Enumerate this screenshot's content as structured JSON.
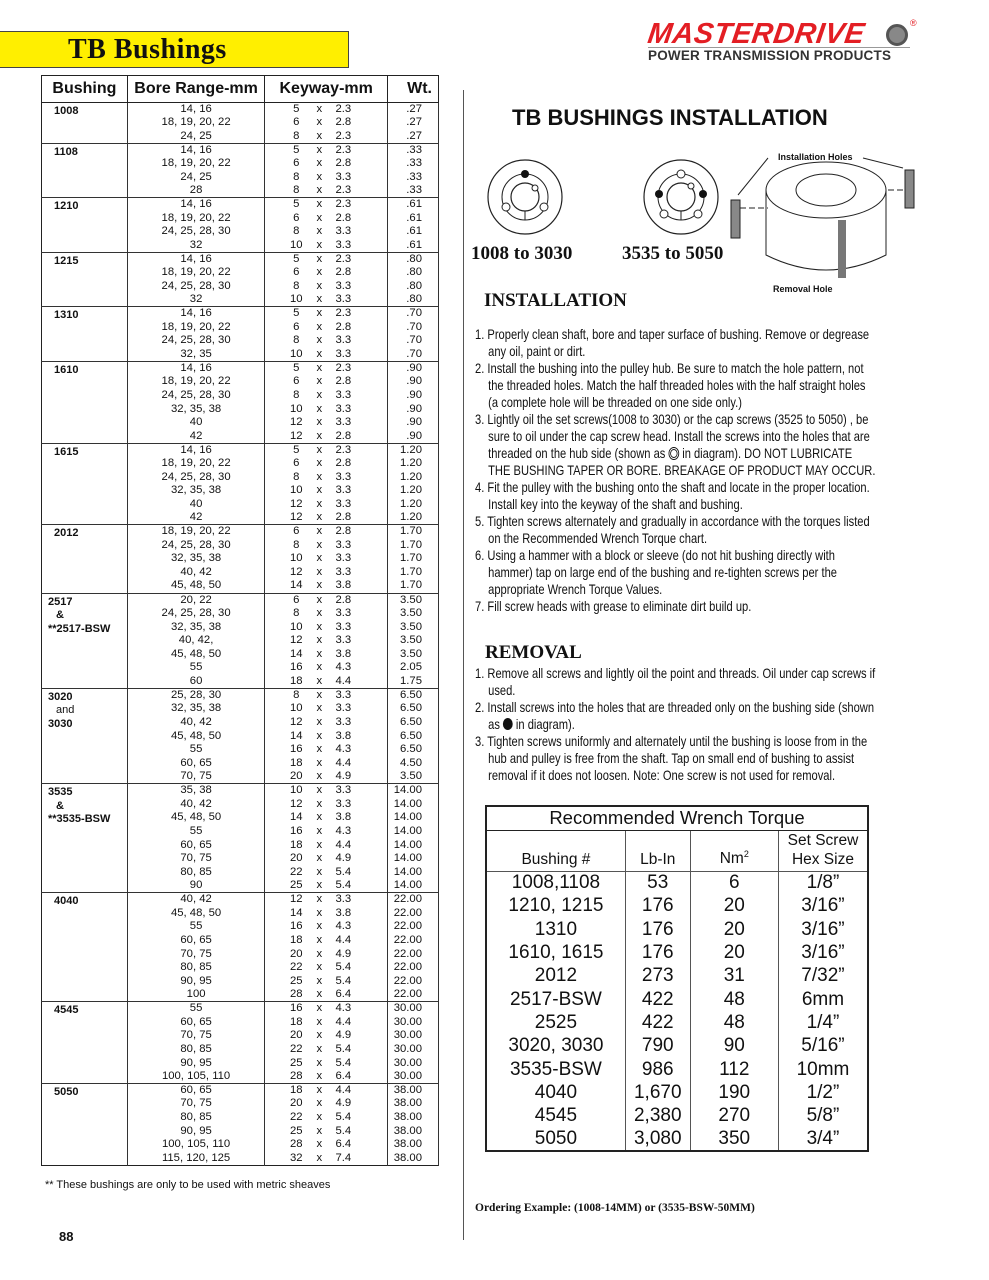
{
  "page_title": "TB  Bushings",
  "logo": {
    "brand": "MASTERDRIVE",
    "tagline": "POWER TRANSMISSION PRODUCTS",
    "brand_color": "#e31e24"
  },
  "spec_table": {
    "headers": [
      "Bushing",
      "Bore Range-mm",
      "Keyway-mm",
      "Wt."
    ],
    "groups": [
      {
        "bushing": [
          "1008"
        ],
        "rows": [
          [
            "14,  16",
            "5",
            "2.3",
            ".27"
          ],
          [
            "18, 19, 20, 22",
            "6",
            "2.8",
            ".27"
          ],
          [
            "24, 25",
            "8",
            "2.3",
            ".27"
          ]
        ]
      },
      {
        "bushing": [
          "1108"
        ],
        "rows": [
          [
            "14, 16",
            "5",
            "2.3",
            ".33"
          ],
          [
            "18, 19, 20, 22",
            "6",
            "2.8",
            ".33"
          ],
          [
            "24, 25",
            "8",
            "3.3",
            ".33"
          ],
          [
            "28",
            "8",
            "2.3",
            ".33"
          ]
        ]
      },
      {
        "bushing": [
          "1210"
        ],
        "rows": [
          [
            "14, 16",
            "5",
            "2.3",
            ".61"
          ],
          [
            "18, 19, 20, 22",
            "6",
            "2.8",
            ".61"
          ],
          [
            "24, 25, 28, 30",
            "8",
            "3.3",
            ".61"
          ],
          [
            "32",
            "10",
            "3.3",
            ".61"
          ]
        ]
      },
      {
        "bushing": [
          "1215"
        ],
        "rows": [
          [
            "14, 16",
            "5",
            "2.3",
            ".80"
          ],
          [
            "18, 19, 20, 22",
            "6",
            "2.8",
            ".80"
          ],
          [
            "24, 25, 28, 30",
            "8",
            "3.3",
            ".80"
          ],
          [
            "32",
            "10",
            "3.3",
            ".80"
          ]
        ]
      },
      {
        "bushing": [
          "1310"
        ],
        "rows": [
          [
            "14, 16",
            "5",
            "2.3",
            ".70"
          ],
          [
            "18, 19, 20, 22",
            "6",
            "2.8",
            ".70"
          ],
          [
            "24, 25, 28, 30",
            "8",
            "3.3",
            ".70"
          ],
          [
            "32, 35",
            "10",
            "3.3",
            ".70"
          ]
        ]
      },
      {
        "bushing": [
          "1610"
        ],
        "rows": [
          [
            "14, 16",
            "5",
            "2.3",
            ".90"
          ],
          [
            "18, 19, 20, 22",
            "6",
            "2.8",
            ".90"
          ],
          [
            "24, 25, 28, 30",
            "8",
            "3.3",
            ".90"
          ],
          [
            "32, 35, 38",
            "10",
            "3.3",
            ".90"
          ],
          [
            "40",
            "12",
            "3.3",
            ".90"
          ],
          [
            "42",
            "12",
            "2.8",
            ".90"
          ]
        ]
      },
      {
        "bushing": [
          "1615"
        ],
        "rows": [
          [
            "14, 16",
            "5",
            "2.3",
            "1.20"
          ],
          [
            "18, 19, 20, 22",
            "6",
            "2.8",
            "1.20"
          ],
          [
            "24, 25, 28, 30",
            "8",
            "3.3",
            "1.20"
          ],
          [
            "32, 35, 38",
            "10",
            "3.3",
            "1.20"
          ],
          [
            "40",
            "12",
            "3.3",
            "1.20"
          ],
          [
            "42",
            "12",
            "2.8",
            "1.20"
          ]
        ]
      },
      {
        "bushing": [
          "2012"
        ],
        "rows": [
          [
            "18, 19, 20, 22",
            "6",
            "2.8",
            "1.70"
          ],
          [
            "24, 25, 28, 30",
            "8",
            "3.3",
            "1.70"
          ],
          [
            "32, 35, 38",
            "10",
            "3.3",
            "1.70"
          ],
          [
            "40, 42",
            "12",
            "3.3",
            "1.70"
          ],
          [
            "45, 48, 50",
            "14",
            "3.8",
            "1.70"
          ]
        ]
      },
      {
        "bushing": [
          "2517",
          "&",
          "**2517-BSW"
        ],
        "rows": [
          [
            "20, 22",
            "6",
            "2.8",
            "3.50"
          ],
          [
            "24, 25, 28, 30",
            "8",
            "3.3",
            "3.50"
          ],
          [
            "32, 35, 38",
            "10",
            "3.3",
            "3.50"
          ],
          [
            "40, 42,",
            "12",
            "3.3",
            "3.50"
          ],
          [
            "45, 48, 50",
            "14",
            "3.8",
            "3.50"
          ],
          [
            "55",
            "16",
            "4.3",
            "2.05"
          ],
          [
            "60",
            "18",
            "4.4",
            "1.75"
          ]
        ]
      },
      {
        "bushing": [
          "3020",
          "and",
          "3030"
        ],
        "rows": [
          [
            "25, 28, 30",
            "8",
            "3.3",
            "6.50"
          ],
          [
            "32, 35, 38",
            "10",
            "3.3",
            "6.50"
          ],
          [
            "40, 42",
            "12",
            "3.3",
            "6.50"
          ],
          [
            "45, 48, 50",
            "14",
            "3.8",
            "6.50"
          ],
          [
            "55",
            "16",
            "4.3",
            "6.50"
          ],
          [
            "60, 65",
            "18",
            "4.4",
            "4.50"
          ],
          [
            "70, 75",
            "20",
            "4.9",
            "3.50"
          ]
        ]
      },
      {
        "bushing": [
          "3535",
          "&",
          "**3535-BSW"
        ],
        "rows": [
          [
            "35, 38",
            "10",
            "3.3",
            "14.00"
          ],
          [
            "40, 42",
            "12",
            "3.3",
            "14.00"
          ],
          [
            "45, 48, 50",
            "14",
            "3.8",
            "14.00"
          ],
          [
            "55",
            "16",
            "4.3",
            "14.00"
          ],
          [
            "60, 65",
            "18",
            "4.4",
            "14.00"
          ],
          [
            "70, 75",
            "20",
            "4.9",
            "14.00"
          ],
          [
            "80, 85",
            "22",
            "5.4",
            "14.00"
          ],
          [
            "90",
            "25",
            "5.4",
            "14.00"
          ]
        ]
      },
      {
        "bushing": [
          "4040"
        ],
        "rows": [
          [
            "40, 42",
            "12",
            "3.3",
            "22.00"
          ],
          [
            "45, 48, 50",
            "14",
            "3.8",
            "22.00"
          ],
          [
            "55",
            "16",
            "4.3",
            "22.00"
          ],
          [
            "60, 65",
            "18",
            "4.4",
            "22.00"
          ],
          [
            "70, 75",
            "20",
            "4.9",
            "22.00"
          ],
          [
            "80, 85",
            "22",
            "5.4",
            "22.00"
          ],
          [
            "90, 95",
            "25",
            "5.4",
            "22.00"
          ],
          [
            "100",
            "28",
            "6.4",
            "22.00"
          ]
        ]
      },
      {
        "bushing": [
          "4545"
        ],
        "rows": [
          [
            "55",
            "16",
            "4.3",
            "30.00"
          ],
          [
            "60, 65",
            "18",
            "4.4",
            "30.00"
          ],
          [
            "70, 75",
            "20",
            "4.9",
            "30.00"
          ],
          [
            "80, 85",
            "22",
            "5.4",
            "30.00"
          ],
          [
            "90, 95",
            "25",
            "5.4",
            "30.00"
          ],
          [
            "100, 105, 110",
            "28",
            "6.4",
            "30.00"
          ]
        ]
      },
      {
        "bushing": [
          "5050"
        ],
        "rows": [
          [
            "60, 65",
            "18",
            "4.4",
            "38.00"
          ],
          [
            "70, 75",
            "20",
            "4.9",
            "38.00"
          ],
          [
            "80, 85",
            "22",
            "5.4",
            "38.00"
          ],
          [
            "90, 95",
            "25",
            "5.4",
            "38.00"
          ],
          [
            "100, 105, 110",
            "28",
            "6.4",
            "38.00"
          ],
          [
            "115, 120, 125",
            "32",
            "7.4",
            "38.00"
          ]
        ]
      }
    ],
    "keyway_sep": "x"
  },
  "footnote": "**  These bushings are only to be used with metric sheaves",
  "page_number": "88",
  "install": {
    "title": "TB BUSHINGS INSTALLATION",
    "diagram_labels": {
      "small": "1008 to 3030",
      "large": "3535 to 5050",
      "installation_holes": "Installation Holes",
      "removal_hole": "Removal Hole"
    },
    "installation_heading": "INSTALLATION",
    "installation_steps": [
      "1. Properly clean shaft, bore and taper surface of bushing.  Remove or degrease any oil, paint or dirt.",
      "2. Install the bushing into the pulley hub.  Be sure to match the hole pattern, not the threaded holes.  Match the half threaded holes with the half straight holes (a complete  hole will be threaded on one side only.)",
      {
        "before": "3. Lightly oil the set screws(1008 to 3030) or the cap screws (3525 to 5050) , be sure to oil under the cap screw head.  Install the screws into the holes that are threaded on the hub side (shown as ",
        "icon": "threaded-hole-ring-icon",
        "after": " in diagram).  DO NOT LUBRICATE THE BUSHING TAPER OR BORE.  BREAKAGE OF PRODUCT MAY OCCUR."
      },
      "4. Fit the pulley with the bushing onto the shaft and locate in the proper location.  Install key into the keyway of the shaft and bushing.",
      "5. Tighten screws alternately and gradually in accordance with the torques listed on the Recommended Wrench Torque chart.",
      "6. Using a hammer with a block or sleeve (do not hit bushing directly with hammer) tap on large end of the bushing and re-tighten screws per the appropriate Wrench Torque Values.",
      "7. Fill screw heads with grease to eliminate dirt build up."
    ],
    "removal_heading": "REMOVAL",
    "removal_steps": [
      "1. Remove all screws and lightly oil the point and threads.  Oil under cap screws if used.",
      {
        "before": "2. Install screws into the holes that are threaded only on the bushing side (shown as ",
        "icon": "filled-hole-dot-icon",
        "after": " in diagram)."
      },
      "3. Tighten screws uniformly and alternately until the bushing is loose from in the hub and pulley is free from the shaft.  Tap on small end of bushing to assist removal if it does not loosen.  Note:  One screw is not used for removal."
    ]
  },
  "torque": {
    "title": "Recommended Wrench Torque",
    "headers": [
      "Bushing #",
      "Lb-In",
      "Nm",
      "2",
      "Set Screw",
      "Hex Size"
    ],
    "rows": [
      [
        "1008,1108",
        "53",
        "6",
        "1/8”"
      ],
      [
        "1210, 1215",
        "176",
        "20",
        "3/16”"
      ],
      [
        "1310",
        "176",
        "20",
        "3/16”"
      ],
      [
        "1610, 1615",
        "176",
        "20",
        "3/16”"
      ],
      [
        "2012",
        "273",
        "31",
        "7/32”"
      ],
      [
        "2517-BSW",
        "422",
        "48",
        "6mm"
      ],
      [
        "2525",
        "422",
        "48",
        "1/4”"
      ],
      [
        "3020, 3030",
        "790",
        "90",
        "5/16”"
      ],
      [
        "3535-BSW",
        "986",
        "112",
        "10mm"
      ],
      [
        "4040",
        "1,670",
        "190",
        "1/2”"
      ],
      [
        "4545",
        "2,380",
        "270",
        "5/8”"
      ],
      [
        "5050",
        "3,080",
        "350",
        "3/4”"
      ]
    ]
  },
  "ordering_example": "Ordering Example:  (1008-14MM)  or (3535-BSW-50MM)"
}
